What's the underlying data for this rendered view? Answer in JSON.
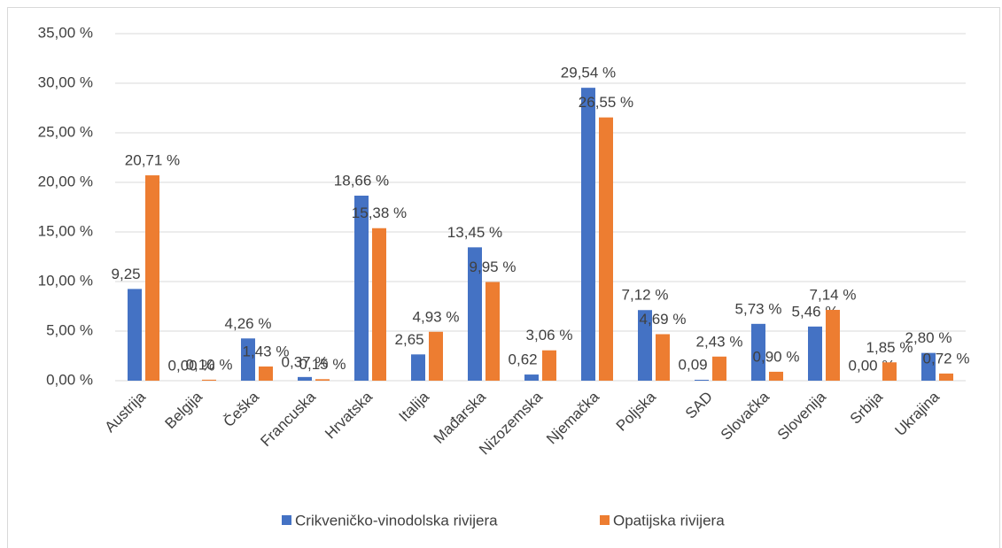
{
  "chart_data": {
    "type": "bar",
    "categories": [
      "Austrija",
      "Belgija",
      "Češka",
      "Francuska",
      "Hrvatska",
      "Italija",
      "Mađarska",
      "Nizozemska",
      "Njemačka",
      "Poljska",
      "SAD",
      "Slovačka",
      "Slovenija",
      "Srbija",
      "Ukrajina"
    ],
    "series": [
      {
        "name": "Crikveničko-vinodolska  rivijera",
        "color": "#4472c4",
        "values": [
          9.25,
          0.0,
          4.26,
          0.37,
          18.66,
          2.65,
          13.45,
          0.62,
          29.54,
          7.12,
          0.09,
          5.73,
          5.46,
          0.0,
          2.8
        ],
        "value_labels": [
          "9,25 %",
          "0,00 %",
          "4,26 %",
          "0,37 %",
          "18,66 %",
          "2,65 %",
          "13,45 %",
          "0,62 %",
          "29,54 %",
          "7,12 %",
          "0,09 %",
          "5,73 %",
          "5,46 %",
          "0,00 %",
          "2,80 %"
        ]
      },
      {
        "name": "Opatijska rivijera",
        "color": "#ed7d31",
        "values": [
          20.71,
          0.1,
          1.43,
          0.15,
          15.38,
          4.93,
          9.95,
          3.06,
          26.55,
          4.69,
          2.43,
          0.9,
          7.14,
          1.85,
          0.72
        ],
        "value_labels": [
          "20,71 %",
          "0,10 %",
          "1,43 %",
          "0,15 %",
          "15,38 %",
          "4,93 %",
          "9,95 %",
          "3,06 %",
          "26,55 %",
          "4,69 %",
          "2,43 %",
          "0,90 %",
          "7,14 %",
          "1,85 %",
          "0,72 %"
        ]
      }
    ],
    "ylim": [
      0,
      35
    ],
    "yticks": [
      {
        "value": 0,
        "label": "0,00 %"
      },
      {
        "value": 5,
        "label": "5,00 %"
      },
      {
        "value": 10,
        "label": "10,00 %"
      },
      {
        "value": 15,
        "label": "15,00 %"
      },
      {
        "value": 20,
        "label": "20,00 %"
      },
      {
        "value": 25,
        "label": "25,00 %"
      },
      {
        "value": 30,
        "label": "30,00 %"
      },
      {
        "value": 35,
        "label": "35,00 %"
      }
    ],
    "grid": true,
    "legend": "bottom"
  }
}
